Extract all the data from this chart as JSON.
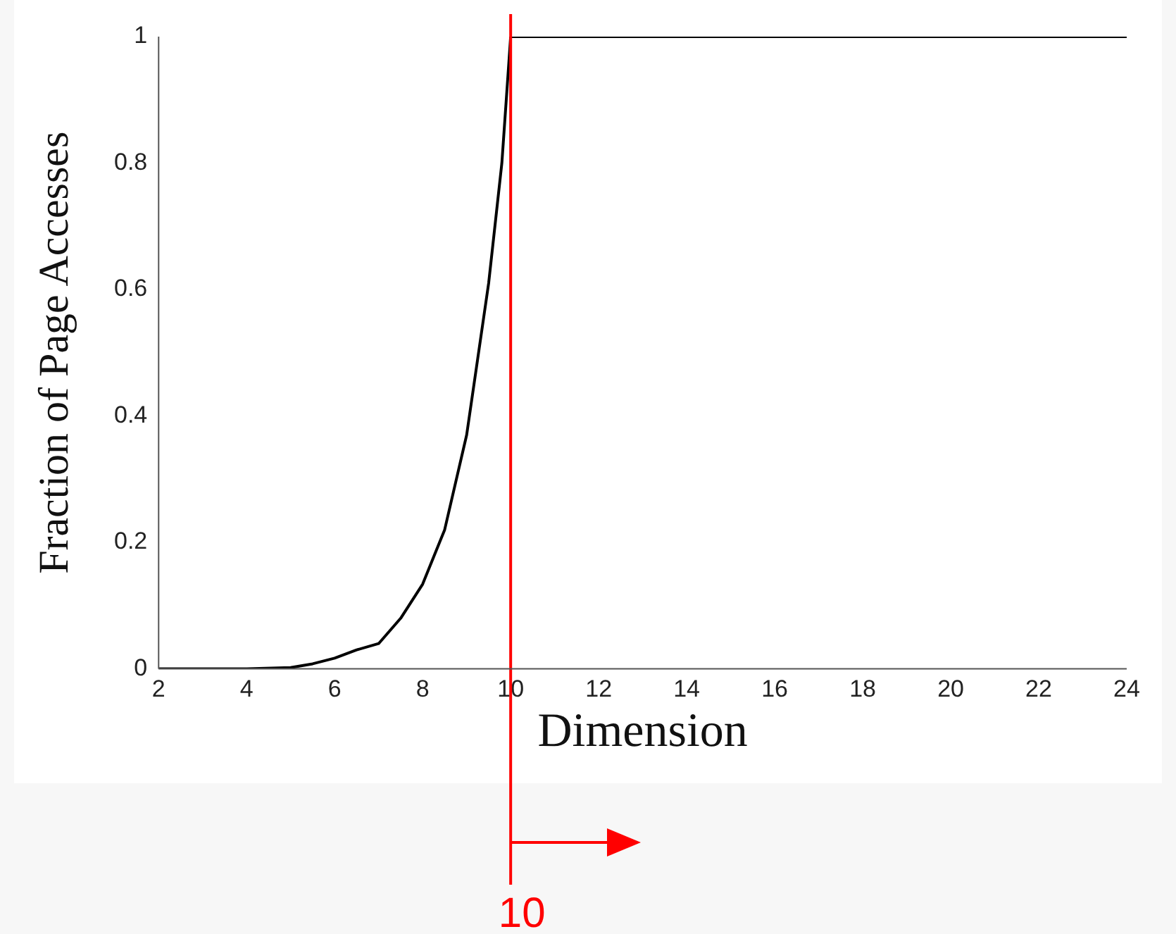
{
  "chart_data": {
    "type": "line",
    "xlabel": "Dimension",
    "ylabel": "Fraction of Page Accesses",
    "x": [
      2,
      3,
      4,
      5,
      5.5,
      6,
      6.5,
      7,
      7.5,
      8,
      8.5,
      9,
      9.5,
      9.8,
      10,
      24
    ],
    "series": [
      {
        "color": "#000000",
        "values": [
          0,
          0,
          0,
          0.002,
          0.008,
          0.017,
          0.03,
          0.04,
          0.08,
          0.134,
          0.22,
          0.37,
          0.61,
          0.8,
          1,
          1
        ]
      }
    ],
    "xlim": [
      2,
      24
    ],
    "xticks": [
      2,
      4,
      6,
      8,
      10,
      12,
      14,
      16,
      18,
      20,
      22,
      24
    ],
    "ylim": [
      0,
      1
    ],
    "yticks": [
      0,
      0.2,
      0.4,
      0.6,
      0.8,
      1
    ],
    "ref_lines": [
      {
        "axis": "x",
        "value": 10,
        "label": "10",
        "color": "#ff0000"
      }
    ],
    "grid": false,
    "legend": false,
    "marker": "none",
    "line_style": "solid"
  }
}
